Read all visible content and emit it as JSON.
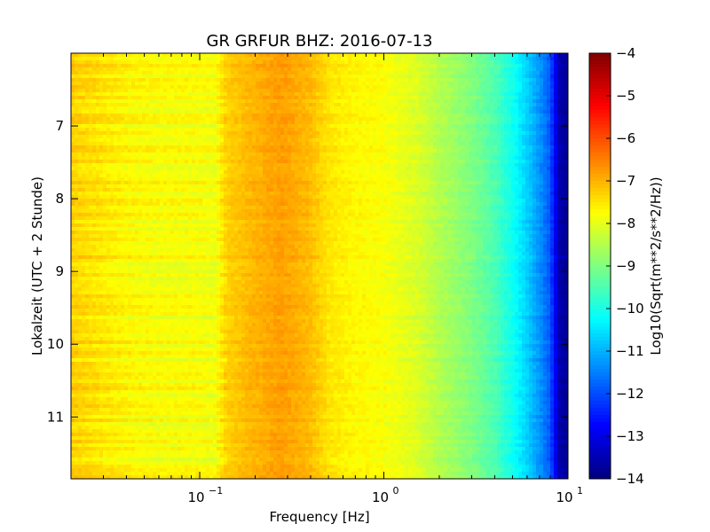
{
  "chart_data": {
    "type": "heatmap",
    "title": "GR GRFUR BHZ: 2016-07-13",
    "xlabel": "Frequency [Hz]",
    "ylabel": "Lokalzeit (UTC + 2 Stunde)",
    "x_scale": "log",
    "xlim": [
      0.02,
      10
    ],
    "ylim": [
      11.85,
      6.0
    ],
    "x_ticks": [
      {
        "value": 0.1,
        "base": "10",
        "exp": "−1"
      },
      {
        "value": 1,
        "base": "10",
        "exp": "0"
      },
      {
        "value": 10,
        "base": "10",
        "exp": "1"
      }
    ],
    "y_ticks": [
      {
        "value": 7,
        "label": "7"
      },
      {
        "value": 8,
        "label": "8"
      },
      {
        "value": 9,
        "label": "9"
      },
      {
        "value": 10,
        "label": "10"
      },
      {
        "value": 11,
        "label": "11"
      }
    ],
    "colorbar": {
      "label": "Log10(Sqrt(m**2/s**2/Hz))",
      "colormap": "jet",
      "vmin": -14,
      "vmax": -4,
      "ticks": [
        {
          "value": -4,
          "label": "−4"
        },
        {
          "value": -5,
          "label": "−5"
        },
        {
          "value": -6,
          "label": "−6"
        },
        {
          "value": -7,
          "label": "−7"
        },
        {
          "value": -8,
          "label": "−8"
        },
        {
          "value": -9,
          "label": "−9"
        },
        {
          "value": -10,
          "label": "−10"
        },
        {
          "value": -11,
          "label": "−11"
        },
        {
          "value": -12,
          "label": "−12"
        },
        {
          "value": -13,
          "label": "−13"
        },
        {
          "value": -14,
          "label": "−14"
        }
      ]
    },
    "spectrum_profile": {
      "frequency_hz": [
        0.02,
        0.04,
        0.06,
        0.1,
        0.12,
        0.14,
        0.2,
        0.28,
        0.4,
        0.5,
        0.7,
        1.0,
        1.5,
        2.0,
        3.0,
        4.0,
        5.0,
        6.0,
        7.0,
        8.0,
        8.5,
        9.0,
        10.0
      ],
      "log10_amplitude": [
        -7.3,
        -7.7,
        -7.8,
        -7.8,
        -7.9,
        -7.3,
        -7.0,
        -6.8,
        -7.1,
        -7.5,
        -7.7,
        -7.8,
        -8.1,
        -8.5,
        -9.0,
        -9.5,
        -10.1,
        -10.7,
        -11.3,
        -11.9,
        -12.8,
        -13.6,
        -13.8
      ]
    }
  }
}
